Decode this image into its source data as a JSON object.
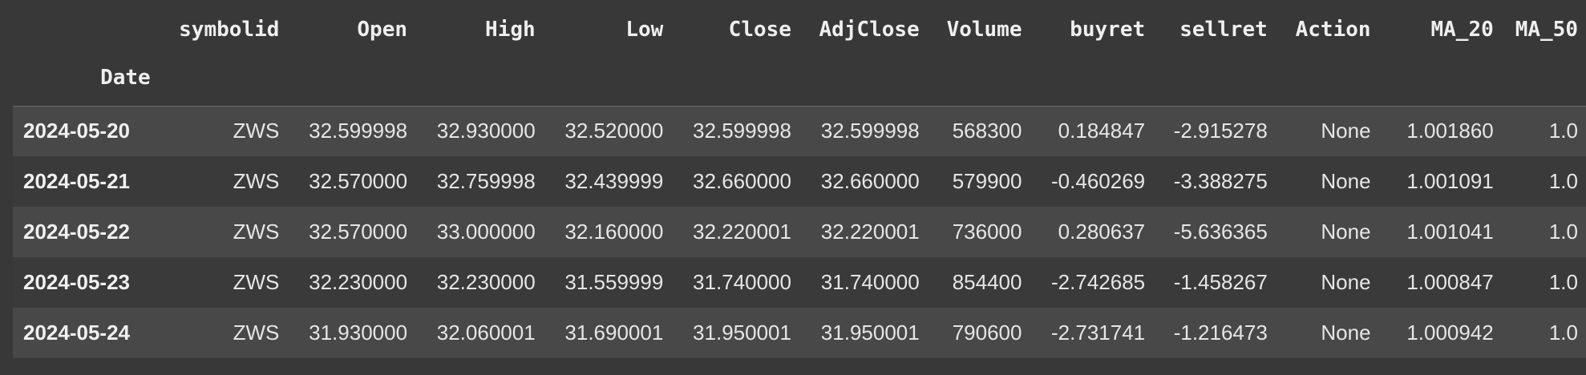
{
  "table": {
    "index_name": "Date",
    "columns": [
      "symbolid",
      "Open",
      "High",
      "Low",
      "Close",
      "AdjClose",
      "Volume",
      "buyret",
      "sellret",
      "Action",
      "MA_20",
      "MA_50"
    ],
    "rows": [
      {
        "date": "2024-05-20",
        "cells": [
          "ZWS",
          "32.599998",
          "32.930000",
          "32.520000",
          "32.599998",
          "32.599998",
          "568300",
          "0.184847",
          "-2.915278",
          "None",
          "1.001860",
          "1.0"
        ]
      },
      {
        "date": "2024-05-21",
        "cells": [
          "ZWS",
          "32.570000",
          "32.759998",
          "32.439999",
          "32.660000",
          "32.660000",
          "579900",
          "-0.460269",
          "-3.388275",
          "None",
          "1.001091",
          "1.0"
        ]
      },
      {
        "date": "2024-05-22",
        "cells": [
          "ZWS",
          "32.570000",
          "33.000000",
          "32.160000",
          "32.220001",
          "32.220001",
          "736000",
          "0.280637",
          "-5.636365",
          "None",
          "1.001041",
          "1.0"
        ]
      },
      {
        "date": "2024-05-23",
        "cells": [
          "ZWS",
          "32.230000",
          "32.230000",
          "31.559999",
          "31.740000",
          "31.740000",
          "854400",
          "-2.742685",
          "-1.458267",
          "None",
          "1.000847",
          "1.0"
        ]
      },
      {
        "date": "2024-05-24",
        "cells": [
          "ZWS",
          "31.930000",
          "32.060001",
          "31.690001",
          "31.950001",
          "31.950001",
          "790600",
          "-2.731741",
          "-1.216473",
          "None",
          "1.000942",
          "1.0"
        ]
      }
    ]
  }
}
